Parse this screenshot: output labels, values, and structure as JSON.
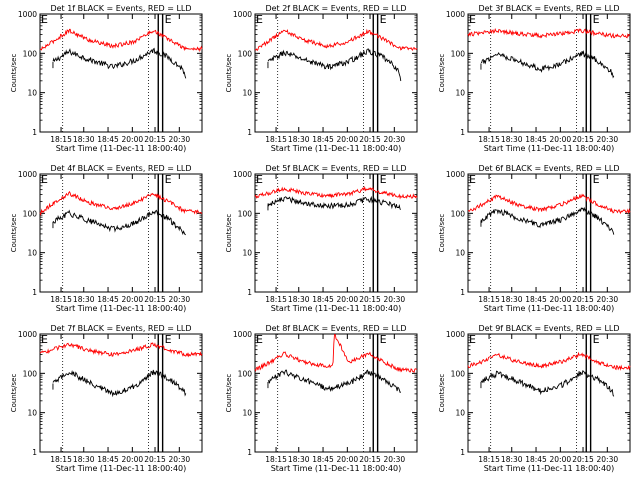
{
  "x_ticks": [
    "18:15",
    "18:30",
    "18:45",
    "20:00",
    "20:15",
    "20:30"
  ],
  "y_ticks": [
    "1",
    "10",
    "100",
    "1000"
  ],
  "ylabel": "Counts/sec",
  "xlabel": "Start Time (11-Dec-11 18:00:40)",
  "flag_labels": [
    "E",
    "E"
  ],
  "colors": {
    "events": "#000000",
    "lld": "#ff0000",
    "background": "#ffffff"
  },
  "chart_data": [
    {
      "type": "line",
      "title": "Det 1f BLACK = Events, RED = LLD",
      "ylabel": "Counts/sec",
      "xlabel": "Start Time (11-Dec-11 18:00:40)",
      "y_scale": "log",
      "ylim": [
        1,
        1000
      ],
      "x_ticks": [
        "18:15",
        "18:30",
        "18:45",
        "20:00",
        "20:15",
        "20:30"
      ],
      "series": [
        {
          "name": "Events",
          "color": "#000000",
          "x": [
            0.08,
            0.18,
            0.3,
            0.45,
            0.58,
            0.7,
            0.79,
            0.88,
            0.9
          ],
          "y": [
            60,
            110,
            70,
            45,
            65,
            120,
            80,
            40,
            25
          ]
        },
        {
          "name": "LLD",
          "color": "#ff0000",
          "x": [
            0.0,
            0.08,
            0.18,
            0.3,
            0.45,
            0.58,
            0.7,
            0.79,
            0.9,
            1.0
          ],
          "y": [
            120,
            200,
            380,
            220,
            150,
            200,
            380,
            230,
            130,
            130
          ]
        }
      ]
    },
    {
      "type": "line",
      "title": "Det 2f BLACK = Events, RED = LLD",
      "ylabel": "Counts/sec",
      "xlabel": "Start Time (11-Dec-11 18:00:40)",
      "y_scale": "log",
      "ylim": [
        1,
        1000
      ],
      "x_ticks": [
        "18:15",
        "18:30",
        "18:45",
        "20:00",
        "20:15",
        "20:30"
      ],
      "series": [
        {
          "name": "Events",
          "color": "#000000",
          "x": [
            0.08,
            0.18,
            0.3,
            0.45,
            0.58,
            0.7,
            0.79,
            0.88,
            0.9
          ],
          "y": [
            60,
            105,
            70,
            45,
            62,
            115,
            80,
            40,
            20
          ]
        },
        {
          "name": "LLD",
          "color": "#ff0000",
          "x": [
            0.0,
            0.08,
            0.18,
            0.3,
            0.45,
            0.58,
            0.7,
            0.79,
            0.9,
            1.0
          ],
          "y": [
            120,
            200,
            380,
            220,
            150,
            200,
            370,
            230,
            130,
            130
          ]
        }
      ]
    },
    {
      "type": "line",
      "title": "Det 3f BLACK = Events, RED = LLD",
      "ylabel": "Counts/sec",
      "xlabel": "Start Time (11-Dec-11 18:00:40)",
      "y_scale": "log",
      "ylim": [
        1,
        1000
      ],
      "x_ticks": [
        "18:15",
        "18:30",
        "18:45",
        "20:00",
        "20:15",
        "20:30"
      ],
      "series": [
        {
          "name": "Events",
          "color": "#000000",
          "x": [
            0.08,
            0.18,
            0.3,
            0.45,
            0.58,
            0.7,
            0.79,
            0.88,
            0.9
          ],
          "y": [
            55,
            100,
            65,
            40,
            55,
            100,
            70,
            35,
            25
          ]
        },
        {
          "name": "LLD",
          "color": "#ff0000",
          "x": [
            0.0,
            0.08,
            0.18,
            0.3,
            0.45,
            0.58,
            0.7,
            0.79,
            0.9,
            1.0
          ],
          "y": [
            300,
            330,
            380,
            320,
            280,
            320,
            380,
            320,
            280,
            280
          ]
        }
      ]
    },
    {
      "type": "line",
      "title": "Det 4f BLACK = Events, RED = LLD",
      "ylabel": "Counts/sec",
      "xlabel": "Start Time (11-Dec-11 18:00:40)",
      "y_scale": "log",
      "ylim": [
        1,
        1000
      ],
      "x_ticks": [
        "18:15",
        "18:30",
        "18:45",
        "20:00",
        "20:15",
        "20:30"
      ],
      "series": [
        {
          "name": "Events",
          "color": "#000000",
          "x": [
            0.08,
            0.18,
            0.3,
            0.45,
            0.58,
            0.7,
            0.79,
            0.88,
            0.9
          ],
          "y": [
            60,
            100,
            65,
            40,
            55,
            110,
            75,
            35,
            25
          ]
        },
        {
          "name": "LLD",
          "color": "#ff0000",
          "x": [
            0.0,
            0.08,
            0.18,
            0.3,
            0.45,
            0.58,
            0.7,
            0.79,
            0.9,
            1.0
          ],
          "y": [
            100,
            180,
            320,
            190,
            130,
            180,
            320,
            200,
            110,
            110
          ]
        }
      ]
    },
    {
      "type": "line",
      "title": "Det 5f BLACK = Events, RED = LLD",
      "ylabel": "Counts/sec",
      "xlabel": "Start Time (11-Dec-11 18:00:40)",
      "y_scale": "log",
      "ylim": [
        1,
        1000
      ],
      "x_ticks": [
        "18:15",
        "18:30",
        "18:45",
        "20:00",
        "20:15",
        "20:30"
      ],
      "series": [
        {
          "name": "Events",
          "color": "#000000",
          "x": [
            0.08,
            0.18,
            0.3,
            0.45,
            0.58,
            0.7,
            0.79,
            0.88,
            0.9
          ],
          "y": [
            170,
            230,
            190,
            150,
            170,
            230,
            190,
            150,
            140
          ]
        },
        {
          "name": "LLD",
          "color": "#ff0000",
          "x": [
            0.0,
            0.08,
            0.18,
            0.3,
            0.45,
            0.58,
            0.7,
            0.79,
            0.9,
            1.0
          ],
          "y": [
            260,
            320,
            420,
            330,
            280,
            320,
            430,
            330,
            270,
            270
          ]
        }
      ]
    },
    {
      "type": "line",
      "title": "Det 6f BLACK = Events, RED = LLD",
      "ylabel": "Counts/sec",
      "xlabel": "Start Time (11-Dec-11 18:00:40)",
      "y_scale": "log",
      "ylim": [
        1,
        1000
      ],
      "x_ticks": [
        "18:15",
        "18:30",
        "18:45",
        "20:00",
        "20:15",
        "20:30"
      ],
      "series": [
        {
          "name": "Events",
          "color": "#000000",
          "x": [
            0.08,
            0.18,
            0.3,
            0.45,
            0.58,
            0.7,
            0.79,
            0.88,
            0.9
          ],
          "y": [
            65,
            120,
            75,
            50,
            70,
            130,
            85,
            40,
            30
          ]
        },
        {
          "name": "LLD",
          "color": "#ff0000",
          "x": [
            0.0,
            0.08,
            0.18,
            0.3,
            0.45,
            0.58,
            0.7,
            0.79,
            0.9,
            1.0
          ],
          "y": [
            110,
            160,
            270,
            170,
            120,
            170,
            280,
            180,
            110,
            110
          ]
        }
      ]
    },
    {
      "type": "line",
      "title": "Det 7f BLACK = Events, RED = LLD",
      "ylabel": "Counts/sec",
      "xlabel": "Start Time (11-Dec-11 18:00:40)",
      "y_scale": "log",
      "ylim": [
        1,
        1000
      ],
      "x_ticks": [
        "18:15",
        "18:30",
        "18:45",
        "20:00",
        "20:15",
        "20:30"
      ],
      "series": [
        {
          "name": "Events",
          "color": "#000000",
          "x": [
            0.08,
            0.18,
            0.3,
            0.45,
            0.58,
            0.7,
            0.79,
            0.88,
            0.9
          ],
          "y": [
            55,
            110,
            60,
            30,
            45,
            110,
            75,
            40,
            30
          ]
        },
        {
          "name": "LLD",
          "color": "#ff0000",
          "x": [
            0.0,
            0.08,
            0.18,
            0.3,
            0.45,
            0.58,
            0.7,
            0.79,
            0.9,
            1.0
          ],
          "y": [
            330,
            400,
            550,
            380,
            300,
            380,
            550,
            400,
            300,
            300
          ]
        }
      ]
    },
    {
      "type": "line",
      "title": "Det 8f BLACK = Events, RED = LLD",
      "ylabel": "Counts/sec",
      "xlabel": "Start Time (11-Dec-11 18:00:40)",
      "y_scale": "log",
      "ylim": [
        1,
        1000
      ],
      "x_ticks": [
        "18:15",
        "18:30",
        "18:45",
        "20:00",
        "20:15",
        "20:30"
      ],
      "series": [
        {
          "name": "Events",
          "color": "#000000",
          "x": [
            0.08,
            0.18,
            0.3,
            0.45,
            0.58,
            0.7,
            0.79,
            0.88,
            0.9
          ],
          "y": [
            60,
            110,
            70,
            40,
            55,
            110,
            75,
            40,
            30
          ]
        },
        {
          "name": "LLD",
          "color": "#ff0000",
          "x": [
            0.0,
            0.08,
            0.18,
            0.3,
            0.45,
            0.48,
            0.49,
            0.58,
            0.7,
            0.79,
            0.9,
            1.0
          ],
          "y": [
            120,
            180,
            320,
            190,
            150,
            150,
            1000,
            190,
            320,
            200,
            120,
            120
          ]
        }
      ]
    },
    {
      "type": "line",
      "title": "Det 9f BLACK = Events, RED = LLD",
      "ylabel": "Counts/sec",
      "xlabel": "Start Time (11-Dec-11 18:00:40)",
      "y_scale": "log",
      "ylim": [
        1,
        1000
      ],
      "x_ticks": [
        "18:15",
        "18:30",
        "18:45",
        "20:00",
        "20:15",
        "20:30"
      ],
      "series": [
        {
          "name": "Events",
          "color": "#000000",
          "x": [
            0.08,
            0.18,
            0.3,
            0.45,
            0.58,
            0.7,
            0.79,
            0.88,
            0.9
          ],
          "y": [
            60,
            100,
            65,
            35,
            50,
            105,
            75,
            40,
            30
          ]
        },
        {
          "name": "LLD",
          "color": "#ff0000",
          "x": [
            0.0,
            0.08,
            0.18,
            0.3,
            0.45,
            0.58,
            0.7,
            0.79,
            0.9,
            1.0
          ],
          "y": [
            150,
            190,
            300,
            200,
            150,
            200,
            310,
            200,
            140,
            140
          ]
        }
      ]
    }
  ]
}
